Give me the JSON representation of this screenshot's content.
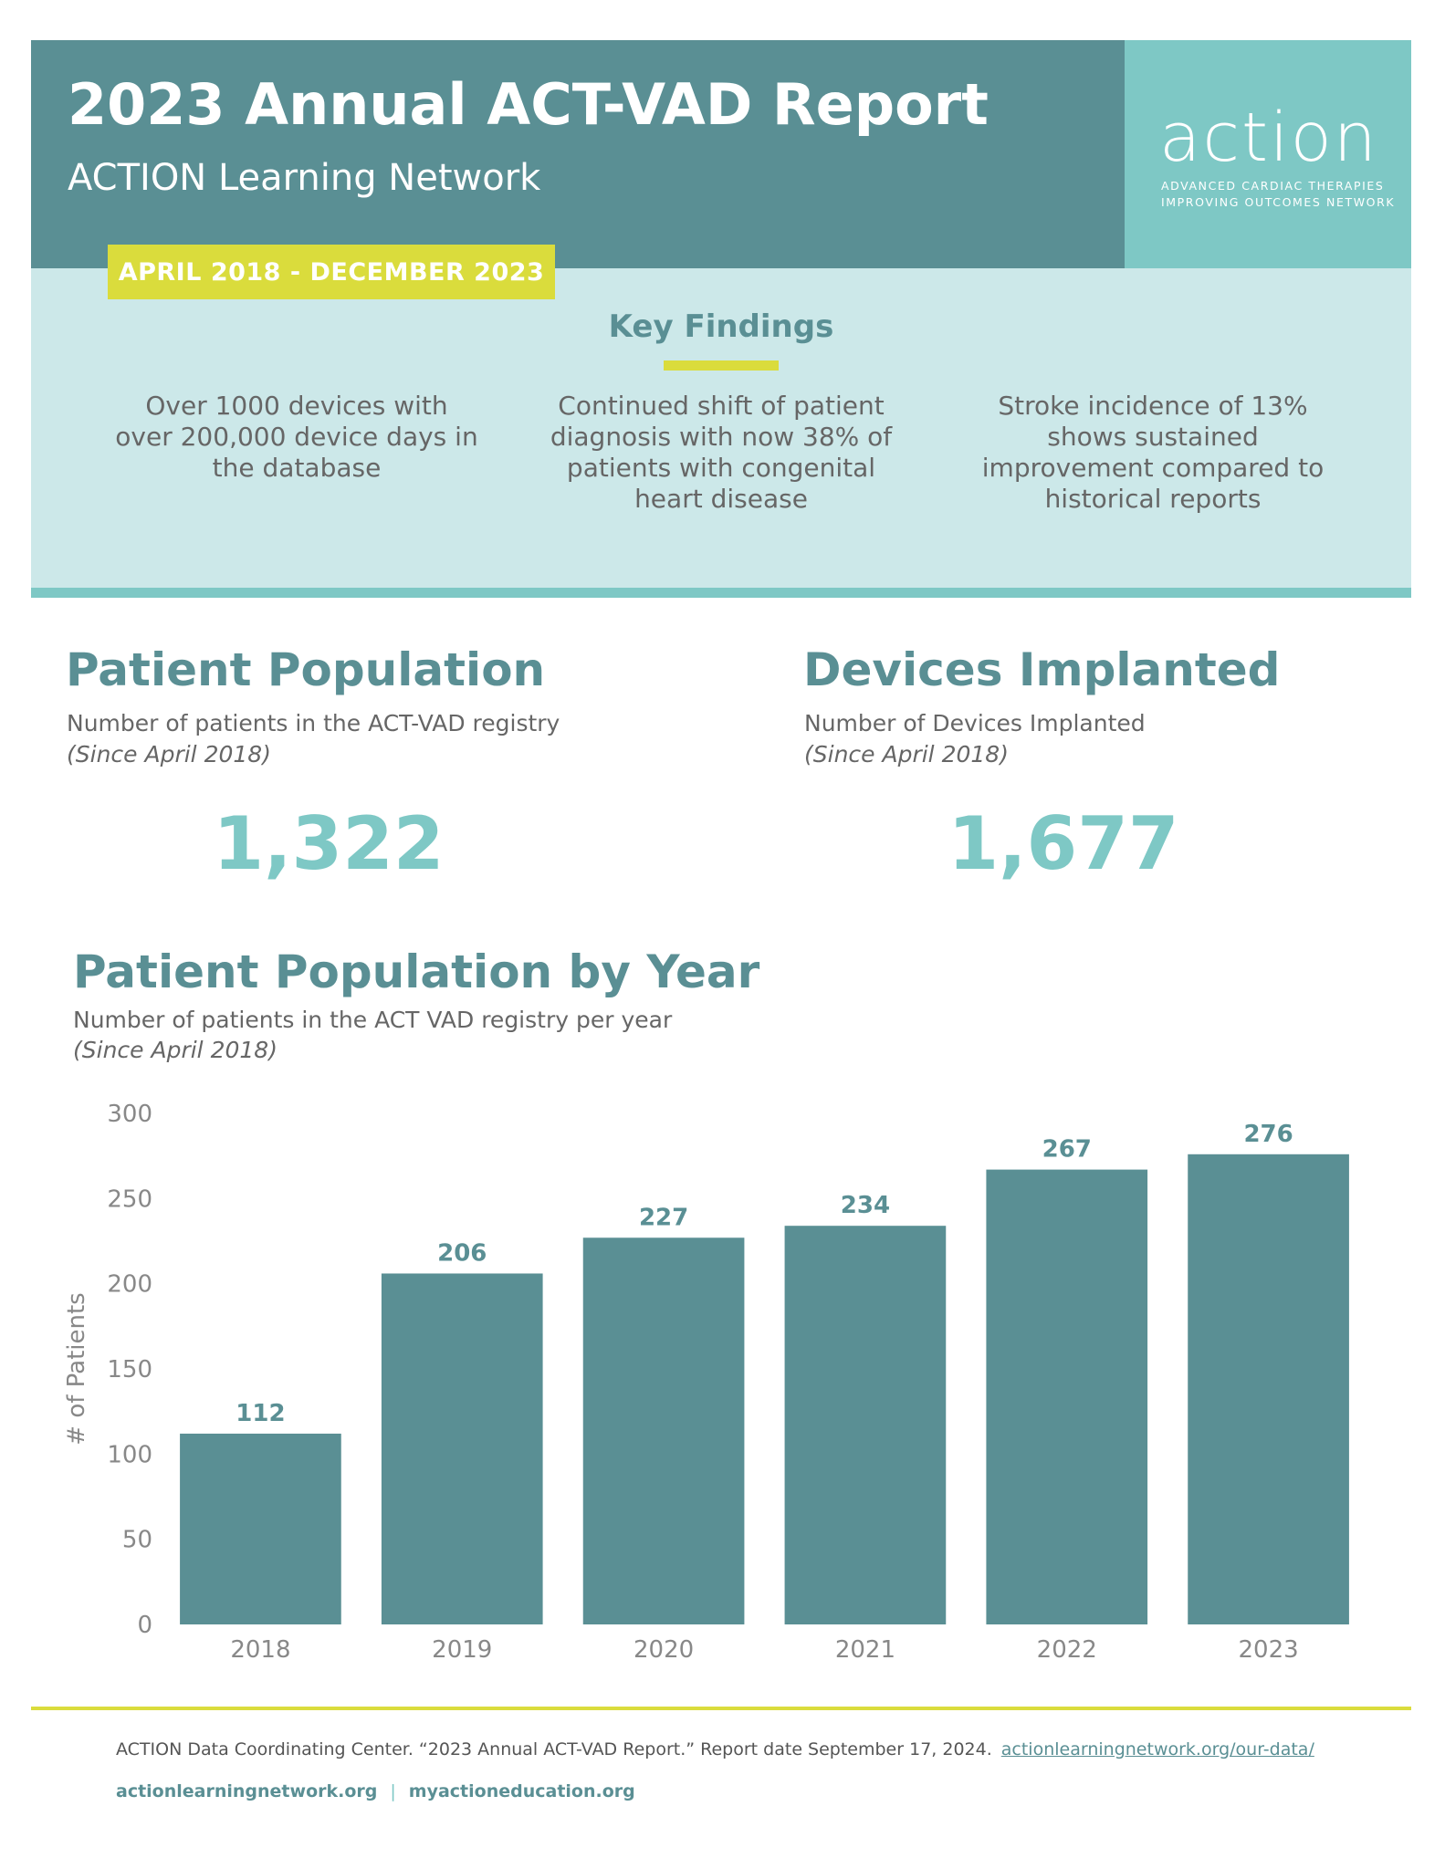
{
  "header": {
    "title": "2023 Annual ACT-VAD Report",
    "subtitle": "ACTION Learning Network",
    "logo_word": "action",
    "logo_tag_1": "ADVANCED CARDIAC THERAPIES",
    "logo_tag_2": "IMPROVING OUTCOMES NETWORK"
  },
  "date_range": "APRIL 2018 - DECEMBER 2023",
  "key_findings": {
    "title": "Key Findings",
    "items": [
      "Over 1000 devices with over 200,000 device days in the database",
      "Continued shift of patient diagnosis with now 38% of patients with congenital heart disease",
      "Stroke incidence of 13% shows sustained improvement compared to historical reports"
    ]
  },
  "patient_population": {
    "title": "Patient Population",
    "description": "Number of patients in the ACT-VAD registry",
    "note": "(Since April 2018)",
    "value": "1,322"
  },
  "devices_implanted": {
    "title": "Devices Implanted",
    "description": "Number of Devices Implanted",
    "note": "(Since April 2018)",
    "value": "1,677"
  },
  "by_year": {
    "title": "Patient Population by Year",
    "description": "Number of patients in the ACT VAD registry per year",
    "note": "(Since April 2018)"
  },
  "chart_data": {
    "type": "bar",
    "categories": [
      "2018",
      "2019",
      "2020",
      "2021",
      "2022",
      "2023"
    ],
    "values": [
      112,
      206,
      227,
      234,
      267,
      276
    ],
    "ylabel": "# of Patients",
    "xlabel": "",
    "ylim": [
      0,
      300
    ],
    "yticks": [
      0,
      50,
      100,
      150,
      200,
      250,
      300
    ],
    "grid": false,
    "bar_color": "#5a8f94"
  },
  "footer": {
    "citation": "ACTION Data Coordinating Center. “2023 Annual ACT-VAD Report.” Report date September 17, 2024.",
    "citation_link": "actionlearningnetwork.org/our-data/",
    "link_1": "actionlearningnetwork.org",
    "separator": "|",
    "link_2": "myactioneducation.org"
  }
}
